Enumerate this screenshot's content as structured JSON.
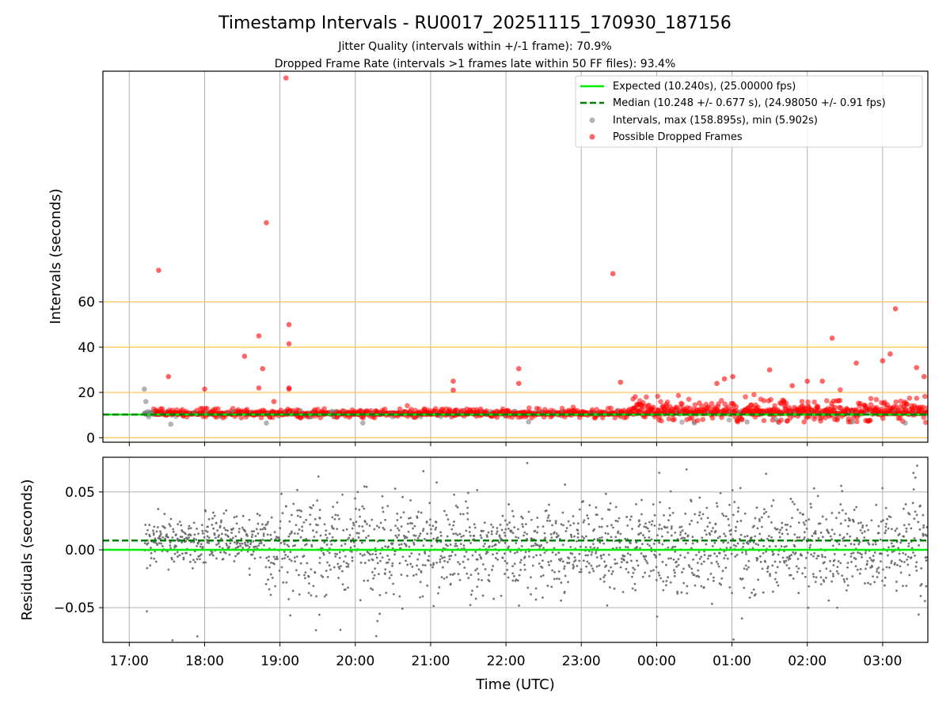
{
  "figure": {
    "title": "Timestamp Intervals - RU0017_20251115_170930_187156",
    "subtitle_1": "Jitter Quality (intervals within +/-1 frame): 70.9%",
    "subtitle_2": "Dropped Frame Rate (intervals >1 frames late within 50 FF files): 93.4%"
  },
  "colors": {
    "expected": "#00ee00",
    "median": "#007f00",
    "interval": "#808080",
    "dropped": "#ff0000",
    "threshold": "#ffc04d",
    "grid": "#b0b0b0",
    "residual": "#666666"
  },
  "chart_data": [
    {
      "type": "scatter",
      "name": "intervals",
      "ylabel": "Intervals (seconds)",
      "xlabel": "",
      "x_unit": "hours since 17:00 UTC",
      "xlim": [
        -0.35,
        10.6
      ],
      "ylim": [
        -2,
        162
      ],
      "y_ticks": [
        0,
        20,
        40,
        60
      ],
      "x_ticks": [
        0,
        1,
        2,
        3,
        4,
        5,
        6,
        7,
        8,
        9,
        10
      ],
      "threshold_lines": [
        0,
        20,
        40,
        60
      ],
      "expected_interval": 10.24,
      "median_interval": 10.248,
      "legend": {
        "placement": "top-right",
        "entries": [
          "Expected (10.240s), (25.00000 fps)",
          "Median (10.248 +/- 0.677 s), (24.98050 +/- 0.91 fps)",
          "Intervals, max (158.895s), min (5.902s)",
          "Possible Dropped Frames"
        ]
      },
      "outliers": [
        {
          "x": 0.39,
          "y": 74
        },
        {
          "x": 0.52,
          "y": 27
        },
        {
          "x": 1.0,
          "y": 21.5
        },
        {
          "x": 1.53,
          "y": 36
        },
        {
          "x": 1.72,
          "y": 45
        },
        {
          "x": 1.72,
          "y": 22
        },
        {
          "x": 1.77,
          "y": 30.5
        },
        {
          "x": 1.82,
          "y": 95
        },
        {
          "x": 1.92,
          "y": 16
        },
        {
          "x": 2.12,
          "y": 21.5
        },
        {
          "x": 2.12,
          "y": 22
        },
        {
          "x": 2.12,
          "y": 50
        },
        {
          "x": 2.12,
          "y": 41.5
        },
        {
          "x": 2.08,
          "y": 159
        },
        {
          "x": 4.3,
          "y": 25
        },
        {
          "x": 4.3,
          "y": 21
        },
        {
          "x": 5.17,
          "y": 30.5
        },
        {
          "x": 5.17,
          "y": 24
        },
        {
          "x": 6.42,
          "y": 72.5
        },
        {
          "x": 6.52,
          "y": 24.5
        },
        {
          "x": 7.9,
          "y": 26
        },
        {
          "x": 8.01,
          "y": 27
        },
        {
          "x": 8.5,
          "y": 30
        },
        {
          "x": 9.33,
          "y": 44
        },
        {
          "x": 10.17,
          "y": 57
        },
        {
          "x": 10.1,
          "y": 37
        },
        {
          "x": 10.0,
          "y": 34
        },
        {
          "x": 9.65,
          "y": 33
        },
        {
          "x": 10.45,
          "y": 31
        },
        {
          "x": 10.55,
          "y": 27
        },
        {
          "x": 9.2,
          "y": 25
        },
        {
          "x": 9.0,
          "y": 25
        },
        {
          "x": 7.8,
          "y": 24
        },
        {
          "x": 8.8,
          "y": 23
        }
      ],
      "gray_outliers": [
        {
          "x": 0.2,
          "y": 21.5
        },
        {
          "x": 0.22,
          "y": 16
        },
        {
          "x": 0.55,
          "y": 6
        },
        {
          "x": 1.82,
          "y": 6.5
        },
        {
          "x": 3.1,
          "y": 6.5
        },
        {
          "x": 5.3,
          "y": 7
        },
        {
          "x": 7.5,
          "y": 6.5
        },
        {
          "x": 8.2,
          "y": 7
        },
        {
          "x": 9.6,
          "y": 7
        },
        {
          "x": 10.3,
          "y": 6.5
        }
      ]
    },
    {
      "type": "scatter",
      "name": "residuals",
      "ylabel": "Residuals (seconds)",
      "xlabel": "Time (UTC)",
      "xlim": [
        -0.35,
        10.6
      ],
      "ylim": [
        -0.08,
        0.08
      ],
      "y_ticks": [
        -0.05,
        0.0,
        0.05
      ],
      "y_tick_labels": [
        "−0.05",
        "0.00",
        "0.05"
      ],
      "x_ticks": [
        0,
        1,
        2,
        3,
        4,
        5,
        6,
        7,
        8,
        9,
        10
      ],
      "x_tick_labels": [
        "17:00",
        "18:00",
        "19:00",
        "20:00",
        "21:00",
        "22:00",
        "23:00",
        "00:00",
        "01:00",
        "02:00",
        "03:00"
      ],
      "expected_residual": 0.0,
      "median_residual": 0.008
    }
  ]
}
